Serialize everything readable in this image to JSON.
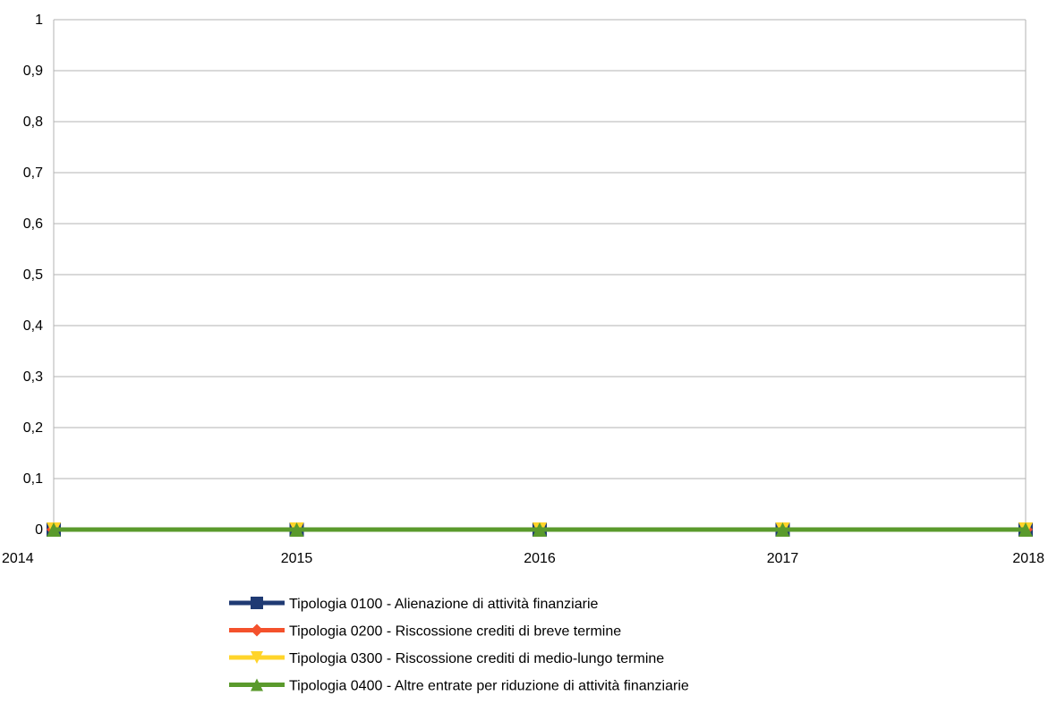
{
  "chart_data": {
    "type": "line",
    "title": "",
    "xlabel": "",
    "ylabel": "",
    "x": [
      "2014",
      "2015",
      "2016",
      "2017",
      "2018"
    ],
    "ylim": [
      0,
      1
    ],
    "yticks": [
      "0",
      "0,1",
      "0,2",
      "0,3",
      "0,4",
      "0,5",
      "0,6",
      "0,7",
      "0,8",
      "0,9",
      "1"
    ],
    "grid": "horizontal",
    "legend_position": "bottom",
    "series": [
      {
        "name": "Tipologia 0100 - Alienazione di attività finanziarie",
        "values": [
          0,
          0,
          0,
          0,
          0
        ],
        "color": "#1f3a73",
        "marker": "square"
      },
      {
        "name": "Tipologia 0200 - Riscossione crediti di breve termine",
        "values": [
          0,
          0,
          0,
          0,
          0
        ],
        "color": "#f4512c",
        "marker": "diamond"
      },
      {
        "name": "Tipologia 0300 - Riscossione crediti di medio-lungo termine",
        "values": [
          0,
          0,
          0,
          0,
          0
        ],
        "color": "#ffd42a",
        "marker": "triangle-down"
      },
      {
        "name": "Tipologia 0400 - Altre entrate per riduzione di attività finanziarie",
        "values": [
          0,
          0,
          0,
          0,
          0
        ],
        "color": "#5a9a2c",
        "marker": "triangle-up"
      }
    ]
  }
}
